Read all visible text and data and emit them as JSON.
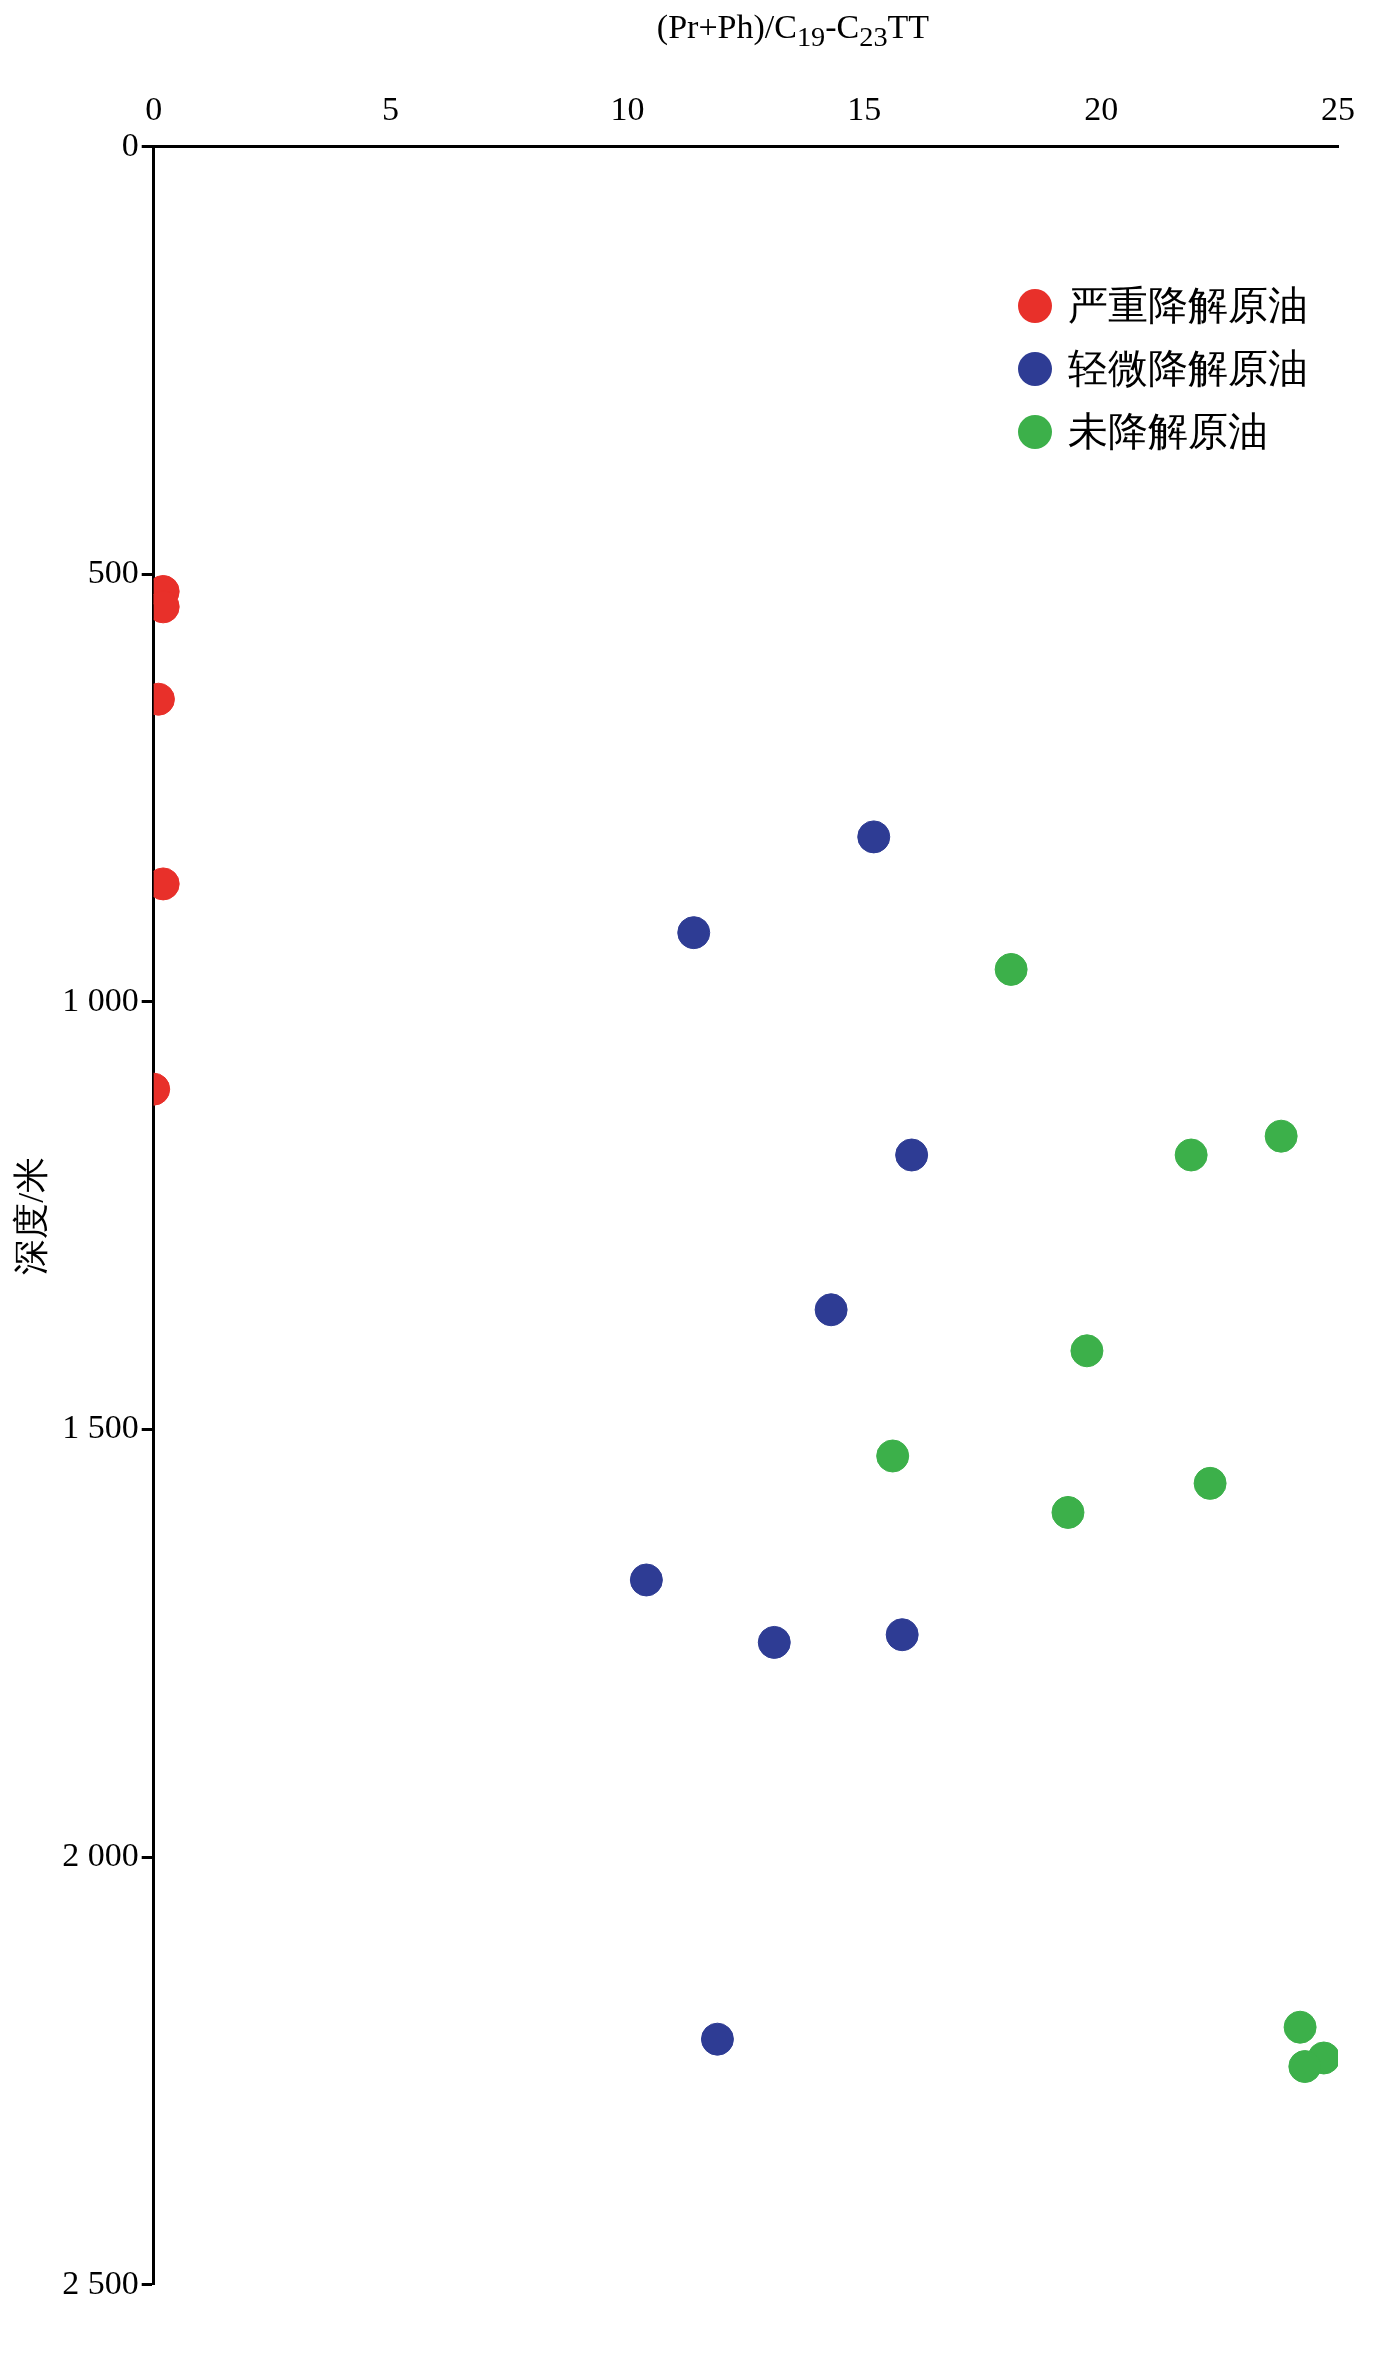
{
  "chart_data": {
    "type": "scatter",
    "xlabel": "(Pr+Ph)/C$_{19}$-C$_{23}$TT",
    "ylabel": "深度/米",
    "xlim": [
      0,
      25
    ],
    "xticks": [
      0,
      5,
      10,
      15,
      20,
      25
    ],
    "ylim": [
      2500,
      0
    ],
    "yticks": [
      0,
      {
        "value": 500,
        "label": "500"
      },
      {
        "value": 1000,
        "label": "1 000"
      },
      {
        "value": 1500,
        "label": "1 500"
      },
      {
        "value": 2000,
        "label": "2 000"
      },
      {
        "value": 2500,
        "label": "2 500"
      }
    ],
    "grid": false,
    "legend": "top right",
    "marker": "circle",
    "series": [
      {
        "name": "严重降解原油",
        "color": "#e8302a",
        "x": [
          0.2,
          0.2,
          0.1,
          0.2,
          0
        ],
        "values": [
          520,
          538,
          646,
          862,
          1102
        ]
      },
      {
        "name": "轻微降解原油",
        "color": "#2e3c94",
        "x": [
          15.2,
          11.4,
          16.0,
          14.3,
          10.4,
          13.1,
          15.8,
          11.9
        ],
        "values": [
          807,
          919,
          1179,
          1360,
          1676,
          1749,
          1740,
          2213
        ]
      },
      {
        "name": "未降解原油",
        "color": "#3cb04a",
        "x": [
          18.1,
          23.8,
          21.9,
          19.7,
          15.6,
          22.3,
          19.3,
          24.2,
          24.7,
          24.3
        ],
        "values": [
          962,
          1157,
          1179,
          1408,
          1531,
          1563,
          1597,
          2199,
          2235,
          2245
        ]
      }
    ]
  }
}
